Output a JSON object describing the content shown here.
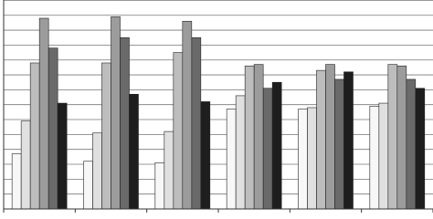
{
  "chart_data": {
    "type": "bar",
    "categories": [
      null,
      null,
      null,
      null,
      null,
      null
    ],
    "series": [
      {
        "color": "#f7f7f7",
        "values": [
          3.7,
          3.2,
          3.1,
          6.7,
          6.7,
          6.9
        ]
      },
      {
        "color": "#e0e0e0",
        "values": [
          5.9,
          5.1,
          5.2,
          7.6,
          6.8,
          7.1
        ]
      },
      {
        "color": "#bdbdbd",
        "values": [
          9.8,
          9.8,
          10.5,
          9.6,
          9.3,
          9.7
        ]
      },
      {
        "color": "#9c9c9c",
        "values": [
          12.8,
          12.9,
          12.6,
          9.7,
          9.7,
          9.6
        ]
      },
      {
        "color": "#6a6a6a",
        "values": [
          10.8,
          11.5,
          11.5,
          8.1,
          8.7,
          8.7
        ]
      },
      {
        "color": "#1e1e1e",
        "values": [
          7.1,
          7.7,
          7.2,
          8.5,
          9.2,
          8.1
        ]
      }
    ],
    "ylim": [
      0,
      14
    ],
    "yticks": [
      0,
      1,
      2,
      3,
      4,
      5,
      6,
      7,
      8,
      9,
      10,
      11,
      12,
      13,
      14
    ],
    "grid": true
  }
}
